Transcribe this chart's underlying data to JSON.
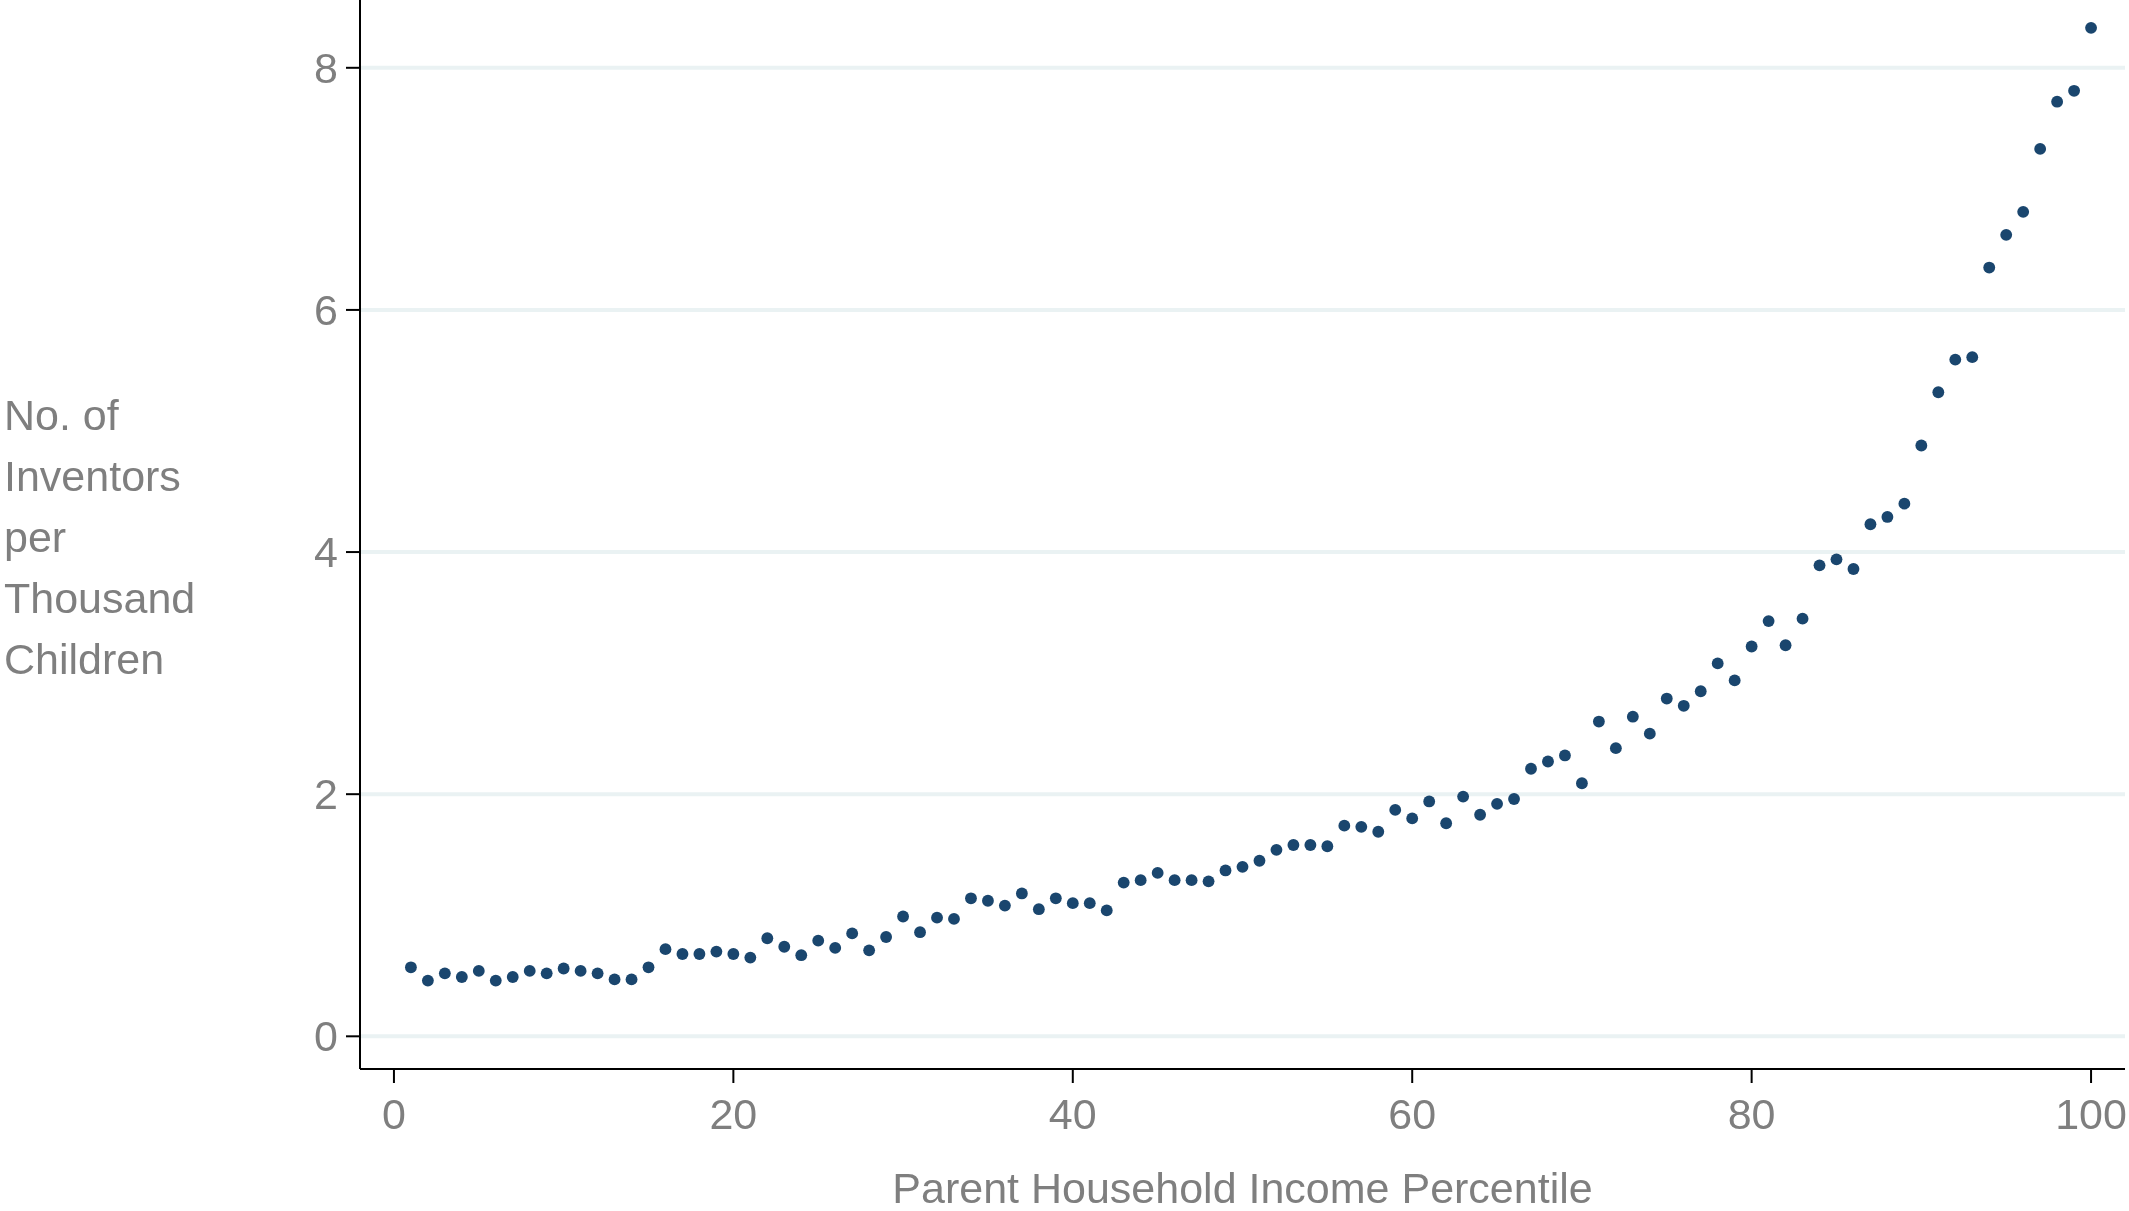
{
  "chart_data": {
    "type": "scatter",
    "xlabel": "Parent Household Income Percentile",
    "ylabel": "No. of Inventors per Thousand Children",
    "x": [
      1,
      2,
      3,
      4,
      5,
      6,
      7,
      8,
      9,
      10,
      11,
      12,
      13,
      14,
      15,
      16,
      17,
      18,
      19,
      20,
      21,
      22,
      23,
      24,
      25,
      26,
      27,
      28,
      29,
      30,
      31,
      32,
      33,
      34,
      35,
      36,
      37,
      38,
      39,
      40,
      41,
      42,
      43,
      44,
      45,
      46,
      47,
      48,
      49,
      50,
      51,
      52,
      53,
      54,
      55,
      56,
      57,
      58,
      59,
      60,
      61,
      62,
      63,
      64,
      65,
      66,
      67,
      68,
      69,
      70,
      71,
      72,
      73,
      74,
      75,
      76,
      77,
      78,
      79,
      80,
      81,
      82,
      83,
      84,
      85,
      86,
      87,
      88,
      89,
      90,
      91,
      92,
      93,
      94,
      95,
      96,
      97,
      98,
      99,
      100
    ],
    "values": [
      0.57,
      0.46,
      0.52,
      0.49,
      0.54,
      0.46,
      0.49,
      0.54,
      0.52,
      0.56,
      0.54,
      0.52,
      0.47,
      0.47,
      0.57,
      0.72,
      0.68,
      0.68,
      0.7,
      0.68,
      0.65,
      0.81,
      0.74,
      0.67,
      0.79,
      0.73,
      0.85,
      0.71,
      0.82,
      0.99,
      0.86,
      0.98,
      0.97,
      1.14,
      1.12,
      1.08,
      1.18,
      1.05,
      1.14,
      1.1,
      1.1,
      1.04,
      1.27,
      1.29,
      1.35,
      1.29,
      1.29,
      1.28,
      1.37,
      1.4,
      1.45,
      1.54,
      1.58,
      1.58,
      1.57,
      1.74,
      1.73,
      1.69,
      1.87,
      1.8,
      1.94,
      1.76,
      1.98,
      1.83,
      1.92,
      1.96,
      2.21,
      2.27,
      2.32,
      2.09,
      2.6,
      2.38,
      2.64,
      2.5,
      2.79,
      2.73,
      2.85,
      3.08,
      2.94,
      3.22,
      3.43,
      3.23,
      3.45,
      3.89,
      3.94,
      3.86,
      4.23,
      4.29,
      4.4,
      4.88,
      5.32,
      5.59,
      5.61,
      6.35,
      6.62,
      6.81,
      7.33,
      7.72,
      7.81,
      8.33
    ],
    "color": "#1a466e",
    "marker": "circle",
    "xlim": [
      -2,
      102
    ],
    "xticks": [
      0,
      20,
      40,
      60,
      80,
      100
    ],
    "ylim": [
      -0.27,
      8.56
    ],
    "yticks": [
      0,
      2,
      4,
      6,
      8
    ],
    "grid": "y"
  }
}
